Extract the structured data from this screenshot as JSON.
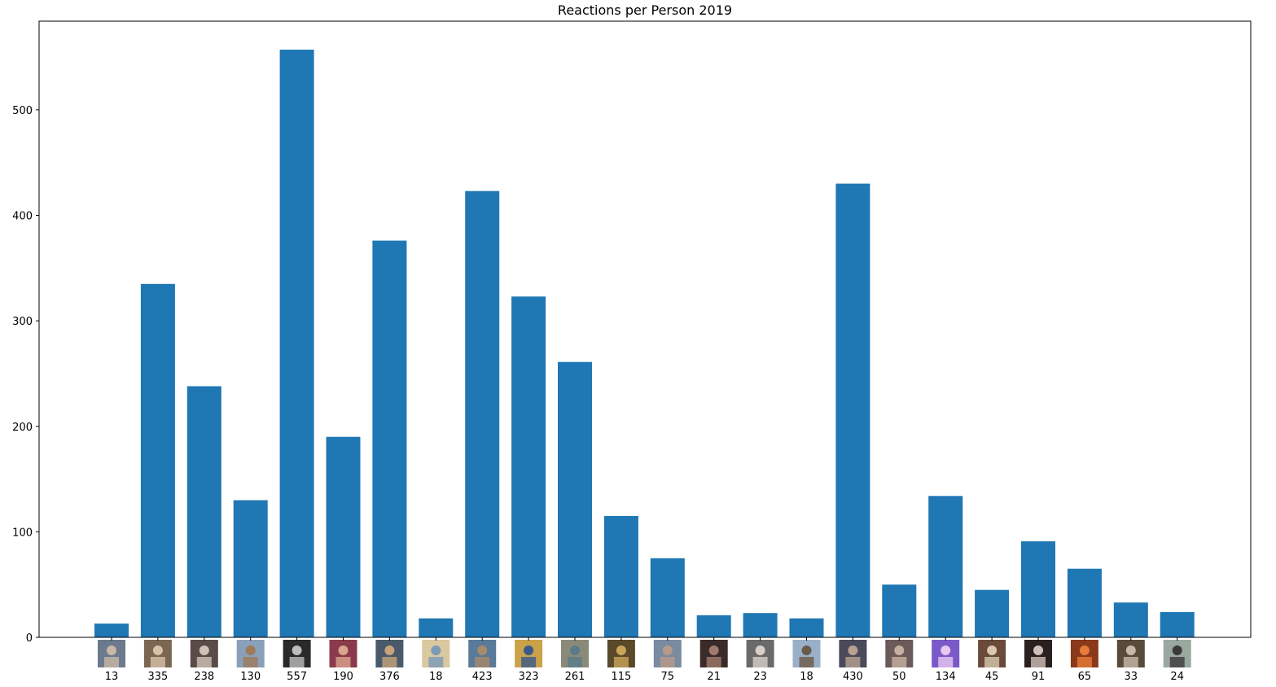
{
  "chart_data": {
    "type": "bar",
    "title": "Reactions per Person 2019",
    "xlabel": "",
    "ylabel": "",
    "categories": [
      "13",
      "335",
      "238",
      "130",
      "557",
      "190",
      "376",
      "18",
      "423",
      "323",
      "261",
      "115",
      "75",
      "21",
      "23",
      "18",
      "430",
      "50",
      "134",
      "45",
      "91",
      "65",
      "33",
      "24"
    ],
    "values": [
      13,
      335,
      238,
      130,
      557,
      190,
      376,
      18,
      423,
      323,
      261,
      115,
      75,
      21,
      23,
      18,
      430,
      50,
      134,
      45,
      91,
      65,
      33,
      24
    ],
    "ylim": [
      0,
      584
    ],
    "yticks": [
      0,
      100,
      200,
      300,
      400,
      500
    ],
    "grid": false,
    "bar_color": "#1f77b4",
    "tick_images": "profile-photo thumbnails shown above each x tick label"
  }
}
